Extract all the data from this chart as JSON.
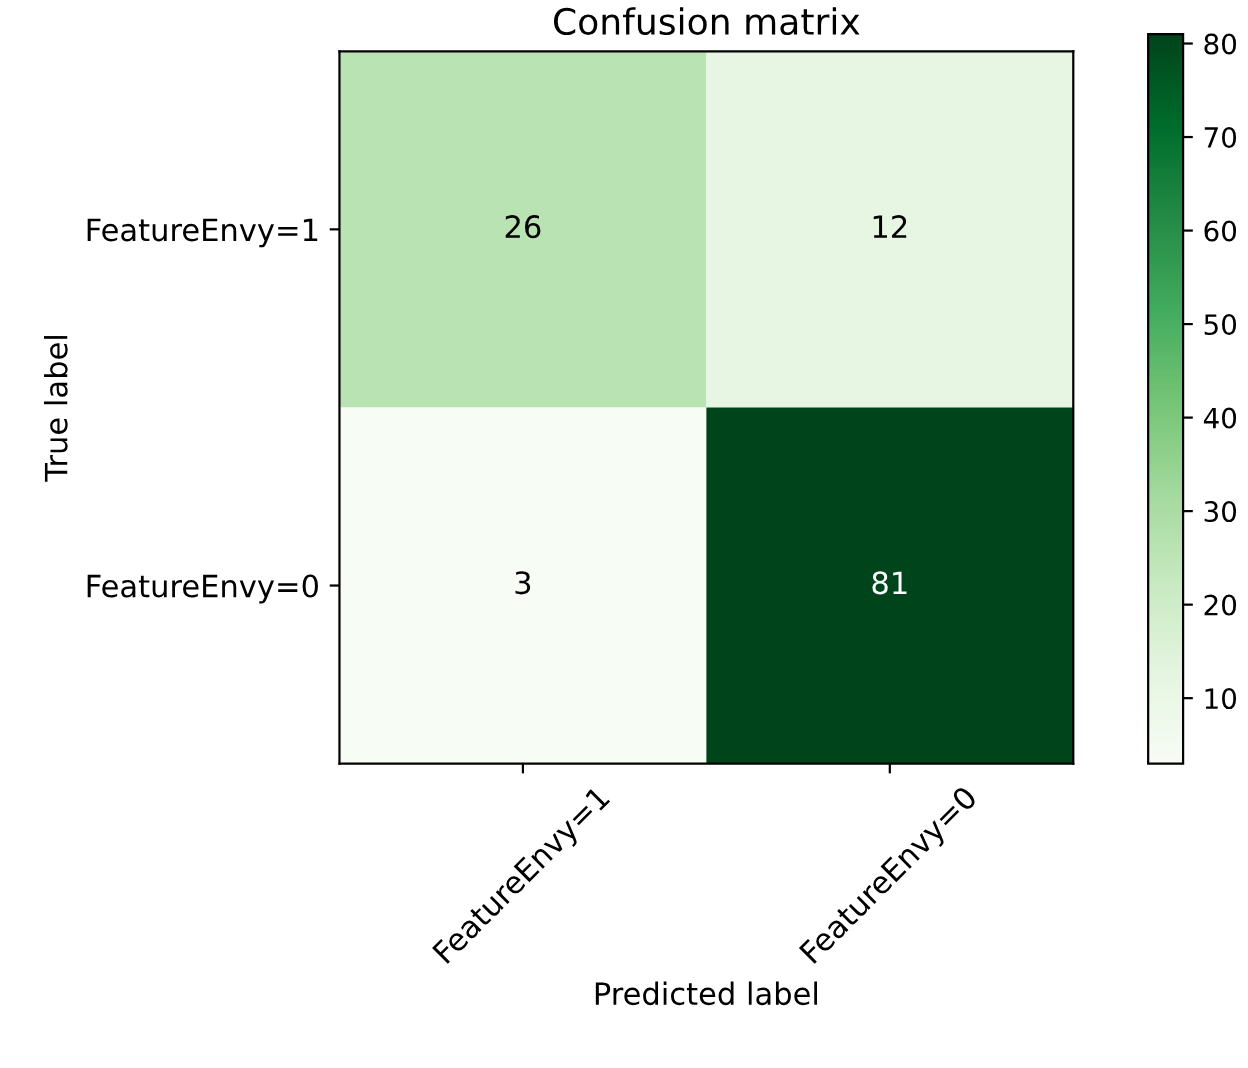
{
  "chart_data": {
    "type": "heatmap",
    "title": "Confusion matrix",
    "xlabel": "Predicted label",
    "ylabel": "True label",
    "categories": [
      "FeatureEnvy=1",
      "FeatureEnvy=0"
    ],
    "y_categories": [
      "FeatureEnvy=1",
      "FeatureEnvy=0"
    ],
    "cells": [
      [
        26,
        12
      ],
      [
        3,
        81
      ]
    ],
    "data_labels": true,
    "clim": [
      3,
      81
    ],
    "cticks": [
      10,
      20,
      30,
      40,
      50,
      60,
      70,
      80
    ]
  }
}
